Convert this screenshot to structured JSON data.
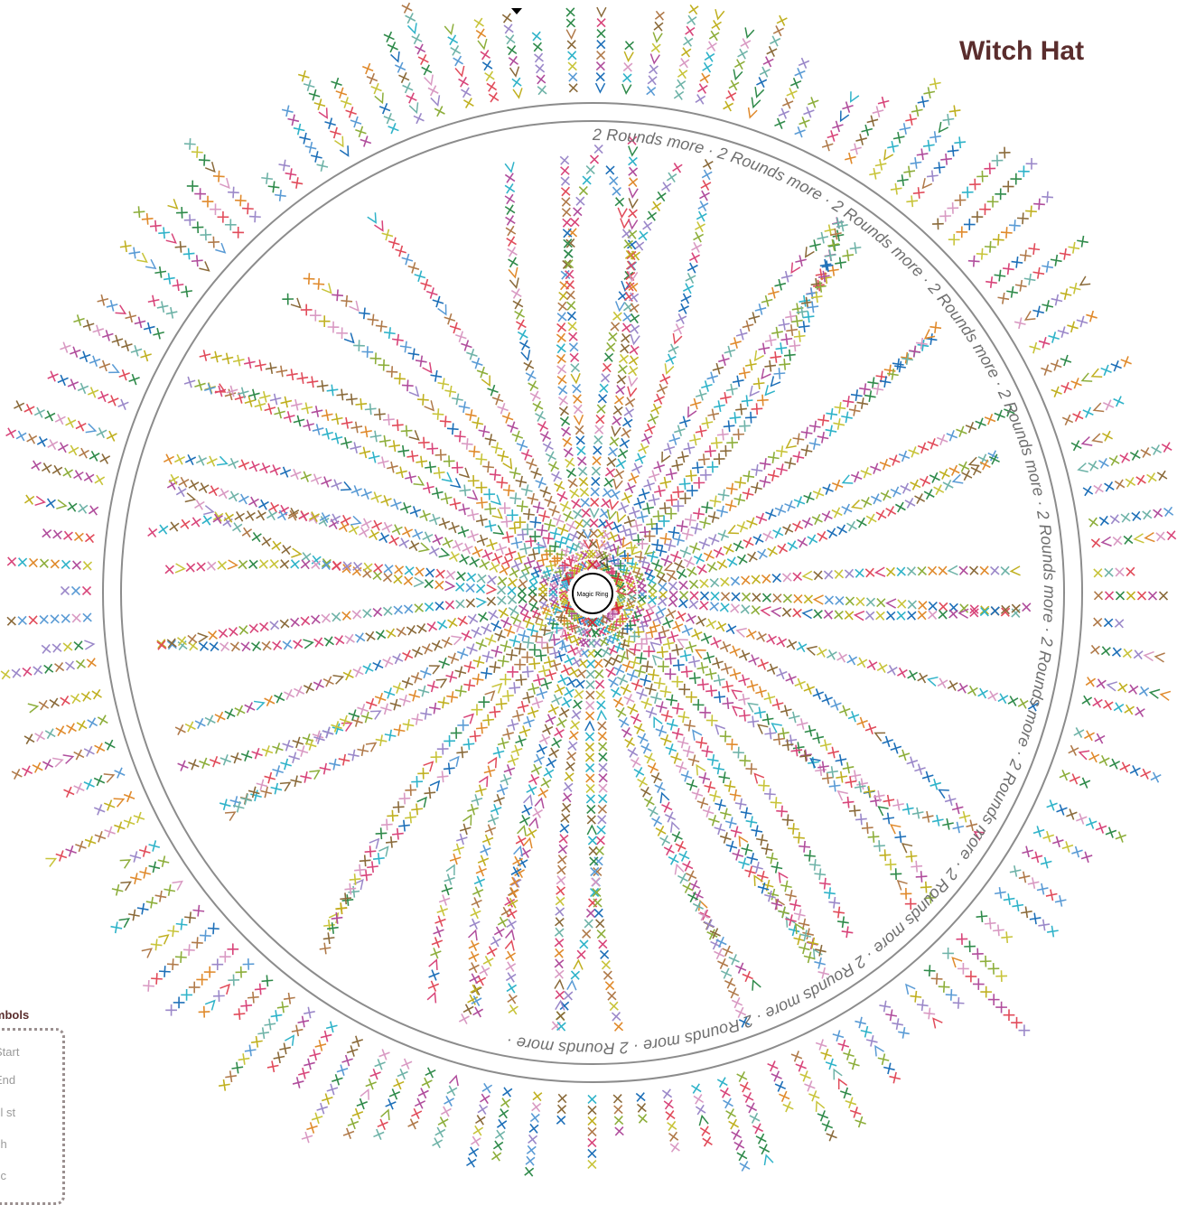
{
  "title": "Witch Hat",
  "center_label": "Magic Ring",
  "ring_text": "2 Rounds more",
  "ring_separator": " · ",
  "legend": {
    "title": "Symbols",
    "items": [
      "Start",
      "End",
      "sl st",
      "ch",
      "sc"
    ]
  },
  "colors": {
    "title": "#5a2d2d",
    "ring": "#8c8c8c",
    "ring_text": "#6f6f6f",
    "stitch_palette": [
      "#2fb3c9",
      "#b04d9c",
      "#d8457a",
      "#8dae3b",
      "#2f8a4a",
      "#e08a2c",
      "#c8c43a",
      "#1d6fb8",
      "#8a6a3a",
      "#9b88c9",
      "#6fb3a8",
      "#d99ac3",
      "#c0b020",
      "#e14b5a",
      "#5a9bd5",
      "#b07a4a"
    ],
    "start_marker": "#d42a3a"
  },
  "icons": {
    "stitch": "x-stitch-icon",
    "increase": "v-increase-icon",
    "start": "start-triangle-icon"
  }
}
